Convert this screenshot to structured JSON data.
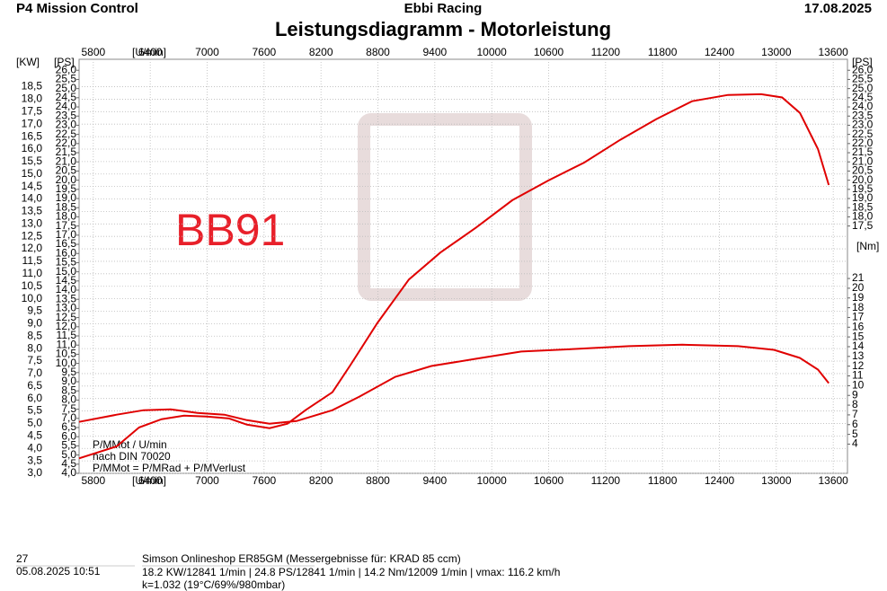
{
  "header": {
    "left": "P4 Mission Control",
    "center": "Ebbi Racing",
    "right": "17.08.2025"
  },
  "chart_data": {
    "type": "line",
    "title": "Leistungsdiagramm - Motorleistung",
    "annotation": "BB91",
    "notes": [
      "P/MMot / U/min",
      "nach DIN 70020",
      "P/MMot = P/MRad + P/MVerlust"
    ],
    "y_label": "[KW]",
    "y2_label": "[PS]",
    "y3_label": "[Nm]",
    "x_label": "[U/min]",
    "grid": true,
    "xlim": [
      5650,
      13750
    ],
    "xticks": [
      5800,
      6400,
      7000,
      7600,
      8200,
      8800,
      9400,
      10000,
      10600,
      11200,
      11800,
      12400,
      13000,
      13600
    ],
    "ylim": [
      3.0,
      19.6
    ],
    "yticks": [
      {
        "value": 3.0,
        "label": "3,0"
      },
      {
        "value": 3.5,
        "label": "3,5"
      },
      {
        "value": 4.0,
        "label": "4,0"
      },
      {
        "value": 4.5,
        "label": "4,5"
      },
      {
        "value": 5.0,
        "label": "5,0"
      },
      {
        "value": 5.5,
        "label": "5,5"
      },
      {
        "value": 6.0,
        "label": "6,0"
      },
      {
        "value": 6.5,
        "label": "6,5"
      },
      {
        "value": 7.0,
        "label": "7,0"
      },
      {
        "value": 7.5,
        "label": "7,5"
      },
      {
        "value": 8.0,
        "label": "8,0"
      },
      {
        "value": 8.5,
        "label": "8,5"
      },
      {
        "value": 9.0,
        "label": "9,0"
      },
      {
        "value": 9.5,
        "label": "9,5"
      },
      {
        "value": 10.0,
        "label": "10,0"
      },
      {
        "value": 10.5,
        "label": "10,5"
      },
      {
        "value": 11.0,
        "label": "11,0"
      },
      {
        "value": 11.5,
        "label": "11,5"
      },
      {
        "value": 12.0,
        "label": "12,0"
      },
      {
        "value": 12.5,
        "label": "12,5"
      },
      {
        "value": 13.0,
        "label": "13,0"
      },
      {
        "value": 13.5,
        "label": "13,5"
      },
      {
        "value": 14.0,
        "label": "14,0"
      },
      {
        "value": 14.5,
        "label": "14,5"
      },
      {
        "value": 15.0,
        "label": "15,0"
      },
      {
        "value": 15.5,
        "label": "15,5"
      },
      {
        "value": 16.0,
        "label": "16,0"
      },
      {
        "value": 16.5,
        "label": "16,5"
      },
      {
        "value": 17.0,
        "label": "17,0"
      },
      {
        "value": 17.5,
        "label": "17,5"
      },
      {
        "value": 18.0,
        "label": "18,0"
      },
      {
        "value": 18.5,
        "label": "18,5"
      }
    ],
    "y2lim": [
      4.0,
      26.6
    ],
    "y2ticks": [
      {
        "value": 4.0,
        "label": "4,0"
      },
      {
        "value": 4.5,
        "label": "4,5"
      },
      {
        "value": 5.0,
        "label": "5,0"
      },
      {
        "value": 5.5,
        "label": "5,5"
      },
      {
        "value": 6.0,
        "label": "6,0"
      },
      {
        "value": 6.5,
        "label": "6,5"
      },
      {
        "value": 7.0,
        "label": "7,0"
      },
      {
        "value": 7.5,
        "label": "7,5"
      },
      {
        "value": 8.0,
        "label": "8,0"
      },
      {
        "value": 8.5,
        "label": "8,5"
      },
      {
        "value": 9.0,
        "label": "9,0"
      },
      {
        "value": 9.5,
        "label": "9,5"
      },
      {
        "value": 10.0,
        "label": "10,0"
      },
      {
        "value": 10.5,
        "label": "10,5"
      },
      {
        "value": 11.0,
        "label": "11,0"
      },
      {
        "value": 11.5,
        "label": "11,5"
      },
      {
        "value": 12.0,
        "label": "12,0"
      },
      {
        "value": 12.5,
        "label": "12,5"
      },
      {
        "value": 13.0,
        "label": "13,0"
      },
      {
        "value": 13.5,
        "label": "13,5"
      },
      {
        "value": 14.0,
        "label": "14,0"
      },
      {
        "value": 14.5,
        "label": "14,5"
      },
      {
        "value": 15.0,
        "label": "15,0"
      },
      {
        "value": 15.5,
        "label": "15,5"
      },
      {
        "value": 16.0,
        "label": "16,0"
      },
      {
        "value": 16.5,
        "label": "16,5"
      },
      {
        "value": 17.0,
        "label": "17,0"
      },
      {
        "value": 17.5,
        "label": "17,5"
      },
      {
        "value": 18.0,
        "label": "18,0"
      },
      {
        "value": 18.5,
        "label": "18,5"
      },
      {
        "value": 19.0,
        "label": "19,0"
      },
      {
        "value": 19.5,
        "label": "19,5"
      },
      {
        "value": 20.0,
        "label": "20,0"
      },
      {
        "value": 20.5,
        "label": "20,5"
      },
      {
        "value": 21.0,
        "label": "21,0"
      },
      {
        "value": 21.5,
        "label": "21,5"
      },
      {
        "value": 22.0,
        "label": "22,0"
      },
      {
        "value": 22.5,
        "label": "22,5"
      },
      {
        "value": 23.0,
        "label": "23,0"
      },
      {
        "value": 23.5,
        "label": "23,5"
      },
      {
        "value": 24.0,
        "label": "24,0"
      },
      {
        "value": 24.5,
        "label": "24,5"
      },
      {
        "value": 25.0,
        "label": "25,0"
      },
      {
        "value": 25.5,
        "label": "25,5"
      },
      {
        "value": 26.0,
        "label": "26,0"
      }
    ],
    "y2ticks_right": [
      {
        "value": 17.5,
        "label": "17,5"
      },
      {
        "value": 18.0,
        "label": "18,0"
      },
      {
        "value": 18.5,
        "label": "18,5"
      },
      {
        "value": 19.0,
        "label": "19,0"
      },
      {
        "value": 19.5,
        "label": "19,5"
      },
      {
        "value": 20.0,
        "label": "20,0"
      },
      {
        "value": 20.5,
        "label": "20,5"
      },
      {
        "value": 21.0,
        "label": "21,0"
      },
      {
        "value": 21.5,
        "label": "21,5"
      },
      {
        "value": 22.0,
        "label": "22,0"
      },
      {
        "value": 22.5,
        "label": "22,5"
      },
      {
        "value": 23.0,
        "label": "23,0"
      },
      {
        "value": 23.5,
        "label": "23,5"
      },
      {
        "value": 24.0,
        "label": "24,0"
      },
      {
        "value": 24.5,
        "label": "24,5"
      },
      {
        "value": 25.0,
        "label": "25,0"
      },
      {
        "value": 25.5,
        "label": "25,5"
      },
      {
        "value": 26.0,
        "label": "26,0"
      }
    ],
    "y3lim": [
      1,
      43.5
    ],
    "y3ticks": [
      4,
      5,
      6,
      7,
      8,
      9,
      10,
      11,
      12,
      13,
      14,
      15,
      16,
      17,
      18,
      19,
      20,
      21
    ],
    "series": [
      {
        "color": "#e00000",
        "axis": "y",
        "x": [
          5650,
          6046,
          6283,
          6520,
          6757,
          6994,
          7231,
          7420,
          7657,
          7847,
          8036,
          8321,
          8510,
          8795,
          9127,
          9458,
          9837,
          10217,
          10596,
          10975,
          11354,
          11733,
          12112,
          12491,
          12841,
          13061,
          13249,
          13439,
          13553
        ],
        "values": [
          3.6,
          4.08,
          4.84,
          5.17,
          5.31,
          5.28,
          5.2,
          4.95,
          4.81,
          4.99,
          5.53,
          6.25,
          7.34,
          9.03,
          10.77,
          11.85,
          12.86,
          13.95,
          14.74,
          15.46,
          16.37,
          17.2,
          17.92,
          18.17,
          18.2,
          18.07,
          17.45,
          16.0,
          14.56
        ]
      },
      {
        "color": "#e00000",
        "axis": "y3",
        "x": [
          5650,
          6046,
          6330,
          6615,
          6899,
          7183,
          7420,
          7657,
          7942,
          8321,
          8605,
          8984,
          9364,
          9837,
          10311,
          10880,
          11449,
          12009,
          12596,
          12975,
          13249,
          13439,
          13553
        ],
        "values": [
          6.28,
          7.02,
          7.48,
          7.57,
          7.2,
          7.02,
          6.46,
          6.09,
          6.37,
          7.48,
          8.87,
          10.91,
          12.02,
          12.76,
          13.5,
          13.77,
          14.05,
          14.2,
          14.05,
          13.68,
          12.85,
          11.65,
          10.26
        ]
      }
    ]
  },
  "footer": {
    "number": "27",
    "datetime": "05.08.2025  10:51",
    "line1": "Simson Onlineshop ER85GM  (Messergebnisse für: KRAD 85 ccm)",
    "line2": "18.2 KW/12841 1/min  |  24.8 PS/12841 1/min  |  14.2 Nm/12009 1/min | vmax: 116.2 km/h",
    "line3": "k=1.032 (19°C/69%/980mbar)"
  }
}
